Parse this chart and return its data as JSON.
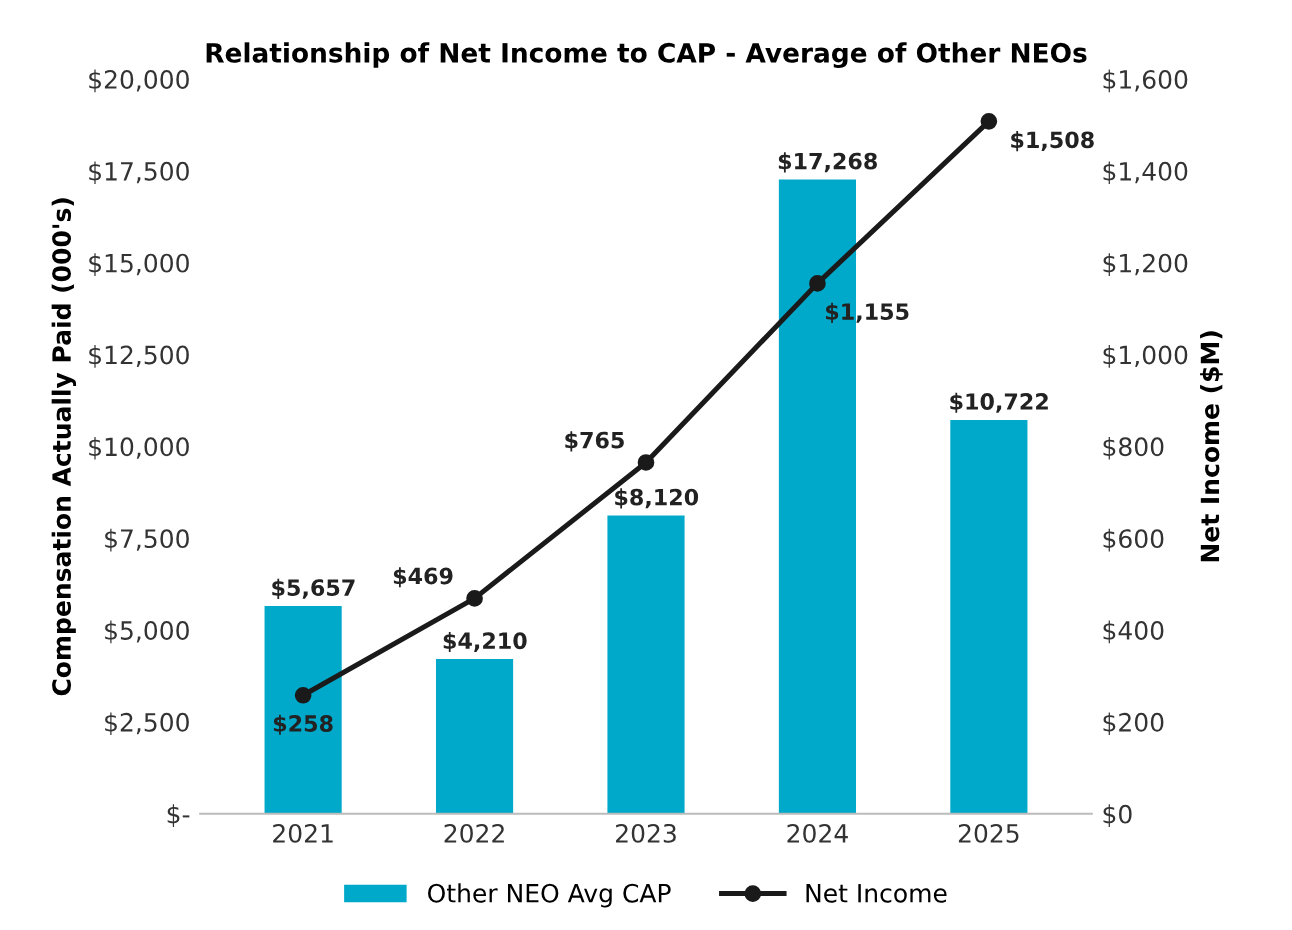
{
  "chart_data": {
    "type": "bar",
    "title": "Relationship of Net Income to CAP - Average of Other NEOs",
    "ylabel": "Compensation Actually Paid (000's)",
    "y2label": "Net Income ($M)",
    "categories": [
      "2021",
      "2022",
      "2023",
      "2024",
      "2025"
    ],
    "series": [
      {
        "name": "Other NEO Avg CAP",
        "color": "#00a9c9",
        "values": [
          5657,
          4210,
          8120,
          17268,
          10722
        ],
        "value_labels": [
          "$5,657",
          "$4,210",
          "$8,120",
          "$17,268",
          "$10,722"
        ]
      },
      {
        "name": "Net Income",
        "type": "line",
        "axis": "y2",
        "color": "#1a1a1a",
        "values": [
          258,
          469,
          765,
          1155,
          1508
        ],
        "value_labels": [
          "$258",
          "$469",
          "$765",
          "$1,155",
          "$1,508"
        ],
        "marker": "circle"
      }
    ],
    "ylim": [
      0,
      20000
    ],
    "yticks": [
      {
        "value": 0,
        "label": "$-"
      },
      {
        "value": 2500,
        "label": "$2,500"
      },
      {
        "value": 5000,
        "label": "$5,000"
      },
      {
        "value": 7500,
        "label": "$7,500"
      },
      {
        "value": 10000,
        "label": "$10,000"
      },
      {
        "value": 12500,
        "label": "$12,500"
      },
      {
        "value": 15000,
        "label": "$15,000"
      },
      {
        "value": 17500,
        "label": "$17,500"
      },
      {
        "value": 20000,
        "label": "$20,000"
      }
    ],
    "y2lim": [
      0,
      1600
    ],
    "y2ticks": [
      {
        "value": 0,
        "label": "$0"
      },
      {
        "value": 200,
        "label": "$200"
      },
      {
        "value": 400,
        "label": "$400"
      },
      {
        "value": 600,
        "label": "$600"
      },
      {
        "value": 800,
        "label": "$800"
      },
      {
        "value": 1000,
        "label": "$1,000"
      },
      {
        "value": 1200,
        "label": "$1,200"
      },
      {
        "value": 1400,
        "label": "$1,400"
      },
      {
        "value": 1600,
        "label": "$1,600"
      }
    ],
    "legend": "bottom",
    "grid": false
  }
}
